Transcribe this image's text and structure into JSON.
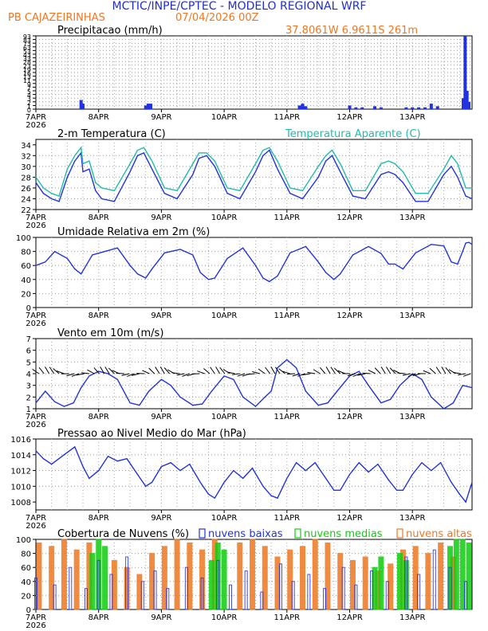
{
  "header": {
    "title": "MCTIC/INPE/CPTEC - MODELO REGIONAL WRF",
    "location": "PB CAJAZEIRINHAS",
    "run": "07/04/2026 00Z",
    "coords": "37.8061W 6.9611S 261m"
  },
  "colors": {
    "blue": "#2233dd",
    "cyan": "#22bbaa",
    "orange": "#ee7722",
    "green": "#11cc11",
    "header_blue": "#1f2fd0"
  },
  "x_axis": {
    "tick_labels": [
      "7APR",
      "8APR",
      "9APR",
      "10APR",
      "11APR",
      "12APR",
      "13APR"
    ],
    "year_label": "2026",
    "range_days": [
      0,
      6.95
    ]
  },
  "chart_data": [
    {
      "type": "bar",
      "title": "Precipitacao (mm/h)",
      "ylim": [
        0,
        93
      ],
      "y_ticks": [
        "0",
        "1",
        "2",
        "3",
        "4",
        "5",
        "7",
        "9",
        "11",
        "13",
        "16",
        "19",
        "23",
        "28",
        "33",
        "43",
        "53",
        "63",
        "73",
        "83",
        "93"
      ],
      "grid": true,
      "x": [
        0.72,
        0.75,
        1.75,
        1.79,
        1.83,
        4.2,
        4.25,
        4.3,
        5.0,
        5.1,
        5.2,
        5.4,
        5.5,
        5.9,
        6.0,
        6.1,
        6.2,
        6.3,
        6.4,
        6.81,
        6.84,
        6.87,
        6.9
      ],
      "values": [
        2.5,
        1.5,
        1.0,
        1.5,
        1.5,
        1.0,
        1.5,
        0.8,
        1.0,
        0.5,
        0.5,
        0.8,
        0.5,
        0.5,
        0.5,
        0.5,
        0.5,
        1.5,
        0.8,
        3.0,
        93,
        5.0,
        2.0
      ]
    },
    {
      "type": "line",
      "title": "2-m Temperatura (C)",
      "ylim": [
        22,
        35
      ],
      "y_ticks": [
        "22",
        "24",
        "26",
        "28",
        "30",
        "32",
        "34"
      ],
      "grid": true,
      "series": [
        {
          "name": "2-m Temperatura (C)",
          "color": "#2233dd",
          "x": [
            0.0,
            0.12,
            0.25,
            0.37,
            0.5,
            0.62,
            0.72,
            0.75,
            0.85,
            0.95,
            1.05,
            1.25,
            1.5,
            1.62,
            1.72,
            1.85,
            2.05,
            2.25,
            2.5,
            2.6,
            2.72,
            2.85,
            3.05,
            3.25,
            3.5,
            3.62,
            3.72,
            3.85,
            4.05,
            4.25,
            4.5,
            4.62,
            4.72,
            4.85,
            5.05,
            5.25,
            5.5,
            5.62,
            5.72,
            5.85,
            6.05,
            6.25,
            6.5,
            6.62,
            6.72,
            6.85,
            6.95
          ],
          "values": [
            27.0,
            25.0,
            24.0,
            23.5,
            28.0,
            31.0,
            32.5,
            29.0,
            29.5,
            25.5,
            24.0,
            23.5,
            29.0,
            32.0,
            32.5,
            29.5,
            25.0,
            24.0,
            28.5,
            31.5,
            32.0,
            30.0,
            25.0,
            24.0,
            29.0,
            32.0,
            33.0,
            29.5,
            25.0,
            24.0,
            28.0,
            31.0,
            32.0,
            29.0,
            24.5,
            24.0,
            28.5,
            29.0,
            28.5,
            27.0,
            23.5,
            23.5,
            28.5,
            30.0,
            28.0,
            24.5,
            24.0
          ]
        },
        {
          "name": "Temperatura Aparente (C)",
          "color": "#22bbaa",
          "x": [
            0.0,
            0.12,
            0.25,
            0.37,
            0.5,
            0.62,
            0.72,
            0.75,
            0.85,
            0.95,
            1.05,
            1.25,
            1.5,
            1.62,
            1.72,
            1.85,
            2.05,
            2.25,
            2.5,
            2.6,
            2.72,
            2.85,
            3.05,
            3.25,
            3.5,
            3.62,
            3.72,
            3.85,
            4.05,
            4.25,
            4.5,
            4.62,
            4.72,
            4.85,
            5.05,
            5.25,
            5.5,
            5.62,
            5.72,
            5.85,
            6.05,
            6.25,
            6.5,
            6.62,
            6.72,
            6.85,
            6.95
          ],
          "values": [
            28.0,
            26.0,
            25.0,
            24.5,
            29.5,
            32.0,
            33.5,
            30.5,
            31.0,
            27.0,
            26.0,
            25.5,
            30.5,
            33.0,
            33.5,
            31.0,
            26.0,
            25.5,
            30.5,
            32.5,
            32.5,
            31.0,
            26.0,
            25.5,
            30.5,
            33.0,
            33.5,
            31.0,
            26.0,
            25.5,
            30.0,
            32.0,
            33.0,
            30.5,
            25.5,
            25.5,
            30.5,
            31.0,
            30.5,
            29.0,
            25.0,
            25.0,
            29.5,
            32.0,
            30.5,
            26.0,
            26.0
          ]
        }
      ]
    },
    {
      "type": "line",
      "title": "Umidade Relativa em 2m (%)",
      "ylim": [
        0,
        100
      ],
      "y_ticks": [
        "0",
        "20",
        "40",
        "60",
        "80",
        "100"
      ],
      "grid": true,
      "series": [
        {
          "color": "#2233dd",
          "x": [
            0.0,
            0.15,
            0.3,
            0.5,
            0.62,
            0.72,
            0.8,
            0.9,
            1.1,
            1.3,
            1.5,
            1.62,
            1.75,
            1.85,
            2.05,
            2.3,
            2.5,
            2.62,
            2.75,
            2.85,
            3.05,
            3.3,
            3.5,
            3.62,
            3.72,
            3.85,
            4.05,
            4.3,
            4.5,
            4.62,
            4.75,
            4.85,
            5.05,
            5.3,
            5.5,
            5.62,
            5.72,
            5.85,
            6.05,
            6.3,
            6.5,
            6.62,
            6.72,
            6.8,
            6.85,
            6.9,
            6.95
          ],
          "values": [
            60,
            65,
            80,
            70,
            55,
            48,
            60,
            75,
            80,
            85,
            60,
            48,
            42,
            55,
            78,
            83,
            75,
            50,
            40,
            42,
            70,
            85,
            60,
            42,
            37,
            45,
            78,
            87,
            65,
            50,
            40,
            48,
            75,
            87,
            77,
            62,
            62,
            55,
            78,
            90,
            88,
            65,
            62,
            80,
            92,
            93,
            90
          ]
        }
      ]
    },
    {
      "type": "line",
      "title": "Vento em 10m (m/s)",
      "ylim": [
        1,
        7
      ],
      "y_ticks": [
        "1",
        "2",
        "3",
        "4",
        "5",
        "6",
        "7"
      ],
      "grid": true,
      "series": [
        {
          "color": "#2233dd",
          "x": [
            0.0,
            0.15,
            0.3,
            0.45,
            0.6,
            0.72,
            0.85,
            1.0,
            1.15,
            1.3,
            1.5,
            1.65,
            1.8,
            2.0,
            2.15,
            2.3,
            2.5,
            2.65,
            2.8,
            3.0,
            3.15,
            3.3,
            3.5,
            3.65,
            3.75,
            3.85,
            4.0,
            4.15,
            4.3,
            4.5,
            4.65,
            4.8,
            5.0,
            5.15,
            5.3,
            5.5,
            5.65,
            5.8,
            6.0,
            6.15,
            6.3,
            6.5,
            6.65,
            6.8,
            6.95
          ],
          "values": [
            1.5,
            2.5,
            1.6,
            1.2,
            1.5,
            2.8,
            3.8,
            4.2,
            4.0,
            3.5,
            1.5,
            1.3,
            2.5,
            3.5,
            3.0,
            2.0,
            1.3,
            1.4,
            2.5,
            3.8,
            3.5,
            2.0,
            1.2,
            2.0,
            2.5,
            4.5,
            5.2,
            4.5,
            2.5,
            1.3,
            1.5,
            2.5,
            3.8,
            4.2,
            3.0,
            1.5,
            1.8,
            3.0,
            4.0,
            3.5,
            2.0,
            1.0,
            1.5,
            3.0,
            2.8
          ]
        }
      ]
    },
    {
      "type": "line",
      "title": "Pressao ao Nivel Medio do Mar (hPa)",
      "ylim": [
        1007,
        1016
      ],
      "y_ticks": [
        "1008",
        "1010",
        "1012",
        "1014",
        "1016"
      ],
      "grid": true,
      "series": [
        {
          "color": "#2233dd",
          "x": [
            0.0,
            0.12,
            0.25,
            0.45,
            0.62,
            0.75,
            0.85,
            1.0,
            1.15,
            1.3,
            1.45,
            1.62,
            1.75,
            1.85,
            2.0,
            2.15,
            2.3,
            2.45,
            2.62,
            2.75,
            2.85,
            3.0,
            3.15,
            3.3,
            3.45,
            3.62,
            3.75,
            3.85,
            4.0,
            4.15,
            4.3,
            4.45,
            4.62,
            4.75,
            4.85,
            5.0,
            5.15,
            5.3,
            5.45,
            5.62,
            5.75,
            5.85,
            6.0,
            6.15,
            6.3,
            6.45,
            6.62,
            6.75,
            6.85,
            6.95
          ],
          "values": [
            1014.5,
            1013.5,
            1012.8,
            1014.0,
            1015.0,
            1012.5,
            1011.0,
            1012.0,
            1013.8,
            1013.2,
            1013.5,
            1011.5,
            1010.0,
            1010.5,
            1012.5,
            1013.0,
            1012.0,
            1012.8,
            1010.5,
            1009.0,
            1008.5,
            1010.5,
            1012.0,
            1011.0,
            1012.3,
            1010.0,
            1008.8,
            1008.5,
            1011.0,
            1013.0,
            1012.0,
            1013.0,
            1011.0,
            1009.5,
            1009.5,
            1011.5,
            1013.0,
            1011.8,
            1012.8,
            1010.8,
            1009.5,
            1009.5,
            1011.5,
            1013.0,
            1012.0,
            1013.0,
            1010.5,
            1009.0,
            1008.0,
            1010.5
          ]
        }
      ]
    },
    {
      "type": "bar",
      "title": "Cobertura de Nuvens (%)",
      "ylim": [
        0,
        100
      ],
      "y_ticks": [
        "0",
        "20",
        "40",
        "60",
        "80",
        "100"
      ],
      "grid": true,
      "series": [
        {
          "name": "nuvens baixas",
          "color": "#2233dd",
          "x": [
            0.0,
            0.3,
            0.55,
            0.8,
            1.0,
            1.2,
            1.45,
            1.7,
            1.9,
            2.1,
            2.4,
            2.65,
            2.9,
            3.1,
            3.35,
            3.6,
            3.9,
            4.1,
            4.35,
            4.6,
            4.9,
            5.1,
            5.35,
            5.6,
            5.9,
            6.1,
            6.35,
            6.6,
            6.85
          ],
          "values": [
            45,
            35,
            60,
            30,
            70,
            50,
            75,
            40,
            55,
            30,
            60,
            45,
            70,
            35,
            55,
            25,
            65,
            40,
            50,
            30,
            60,
            35,
            55,
            40,
            75,
            50,
            85,
            60,
            40
          ]
        },
        {
          "name": "nuvens medias",
          "color": "#11cc11",
          "x": [
            0.9,
            1.0,
            1.1,
            2.8,
            2.9,
            3.0,
            5.4,
            5.5,
            5.8,
            5.9,
            6.6,
            6.7,
            6.8,
            6.9
          ],
          "values": [
            80,
            100,
            90,
            70,
            95,
            85,
            60,
            75,
            80,
            70,
            90,
            100,
            100,
            95
          ]
        },
        {
          "name": "nuvens altas",
          "color": "#ee7722",
          "x": [
            0.05,
            0.25,
            0.45,
            0.65,
            0.85,
            1.25,
            1.45,
            1.65,
            1.85,
            2.05,
            2.25,
            2.45,
            2.65,
            2.85,
            3.25,
            3.45,
            3.65,
            3.85,
            4.05,
            4.25,
            4.45,
            4.65,
            4.85,
            5.05,
            5.25,
            5.45,
            5.65,
            5.85,
            6.05,
            6.25,
            6.45,
            6.65
          ],
          "values": [
            95,
            90,
            100,
            85,
            95,
            70,
            60,
            50,
            80,
            90,
            100,
            95,
            85,
            100,
            95,
            100,
            90,
            75,
            85,
            90,
            100,
            95,
            80,
            70,
            75,
            55,
            65,
            85,
            90,
            80,
            95,
            75
          ]
        }
      ]
    }
  ]
}
